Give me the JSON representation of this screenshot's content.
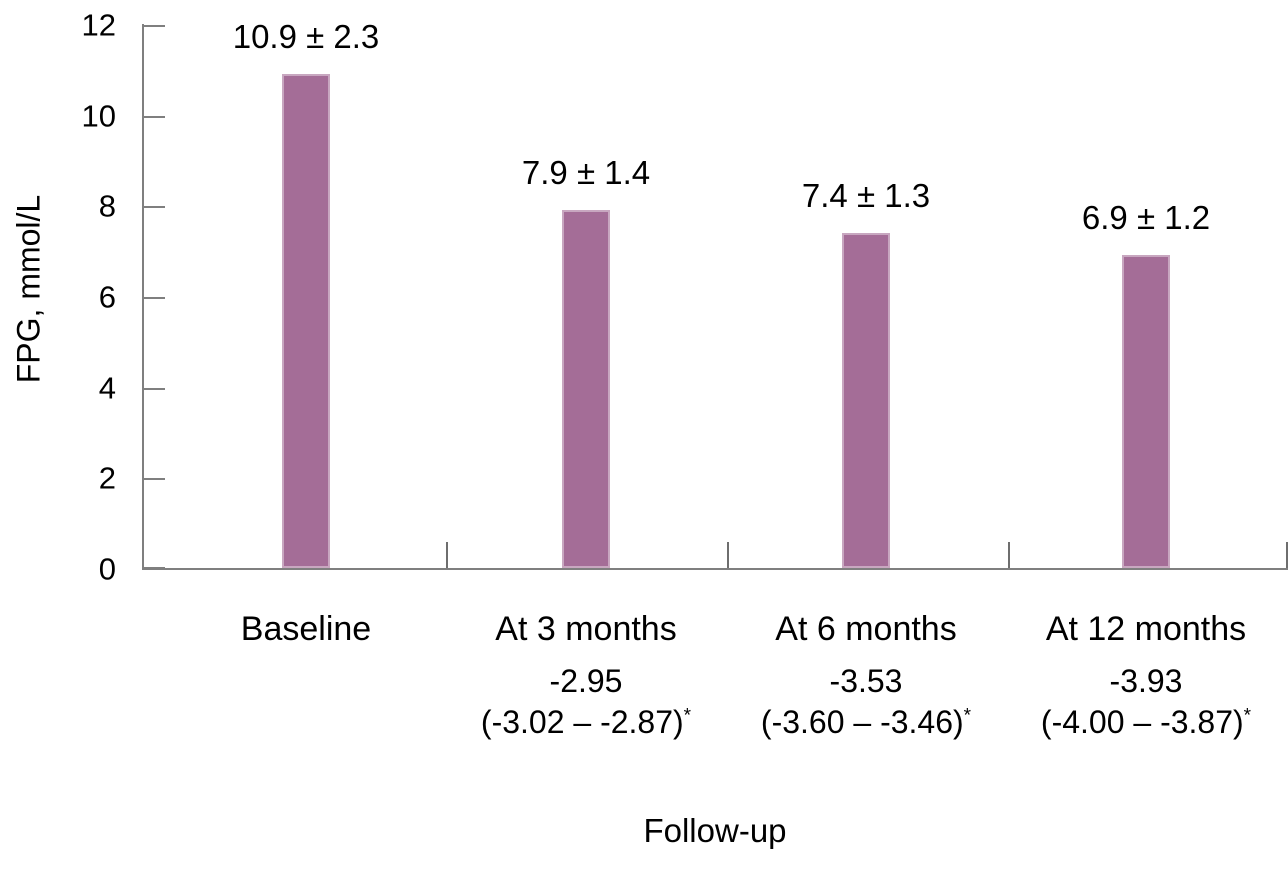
{
  "chart_data": {
    "type": "bar",
    "title": "",
    "xlabel": "Follow-up",
    "ylabel": "FPG, mmol/L",
    "ylim": [
      0,
      12
    ],
    "yticks": [
      0,
      2,
      4,
      6,
      8,
      10,
      12
    ],
    "grid": false,
    "legend": "none",
    "bar_color": "#a46d97",
    "categories": [
      "Baseline",
      "At 3 months",
      "At 6 months",
      "At 12 months"
    ],
    "values": [
      10.9,
      7.9,
      7.4,
      6.9
    ],
    "groups": [
      {
        "category": "Baseline",
        "value": 10.9,
        "value_label": "10.9 ± 2.3"
      },
      {
        "category": "At 3 months",
        "value": 7.9,
        "value_label": "7.9 ± 1.4",
        "change": "-2.95",
        "ci": "(-3.02 – -2.87)",
        "ci_sup": "*"
      },
      {
        "category": "At 6 months",
        "value": 7.4,
        "value_label": "7.4 ± 1.3",
        "change": "-3.53",
        "ci": "(-3.60 – -3.46)",
        "ci_sup": "*"
      },
      {
        "category": "At 12 months",
        "value": 6.9,
        "value_label": "6.9 ± 1.2",
        "change": "-3.93",
        "ci": "(-4.00 – -3.87)",
        "ci_sup": "*"
      }
    ]
  }
}
